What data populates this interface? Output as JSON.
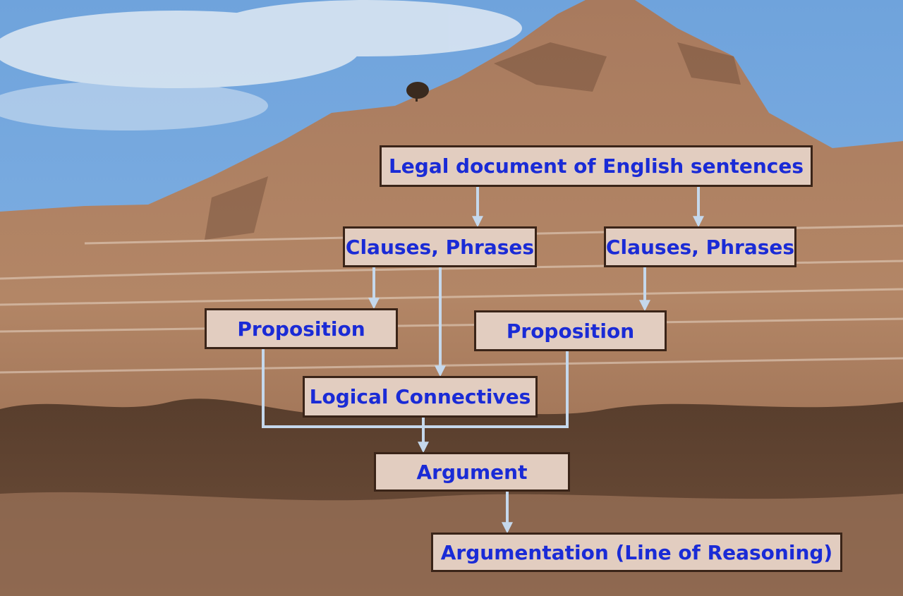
{
  "diagram": {
    "nodes": {
      "legal_document": "Legal document of English sentences",
      "clauses_left": "Clauses, Phrases",
      "clauses_right": "Clauses, Phrases",
      "proposition_left": "Proposition",
      "proposition_right": "Proposition",
      "logical_connectives": "Logical Connectives",
      "argument": "Argument",
      "argumentation": "Argumentation (Line of Reasoning)"
    },
    "edges": [
      [
        "legal_document",
        "clauses_left"
      ],
      [
        "legal_document",
        "clauses_right"
      ],
      [
        "clauses_left",
        "proposition_left"
      ],
      [
        "clauses_left",
        "logical_connectives"
      ],
      [
        "clauses_right",
        "proposition_right"
      ],
      [
        "proposition_left",
        "argument"
      ],
      [
        "proposition_right",
        "argument"
      ],
      [
        "logical_connectives",
        "argument"
      ],
      [
        "argument",
        "argumentation"
      ]
    ],
    "colors": {
      "box_fill": "#e2cdc0",
      "box_border": "#3a2418",
      "text": "#1a2bd6",
      "connector": "#c5d8ec"
    }
  }
}
